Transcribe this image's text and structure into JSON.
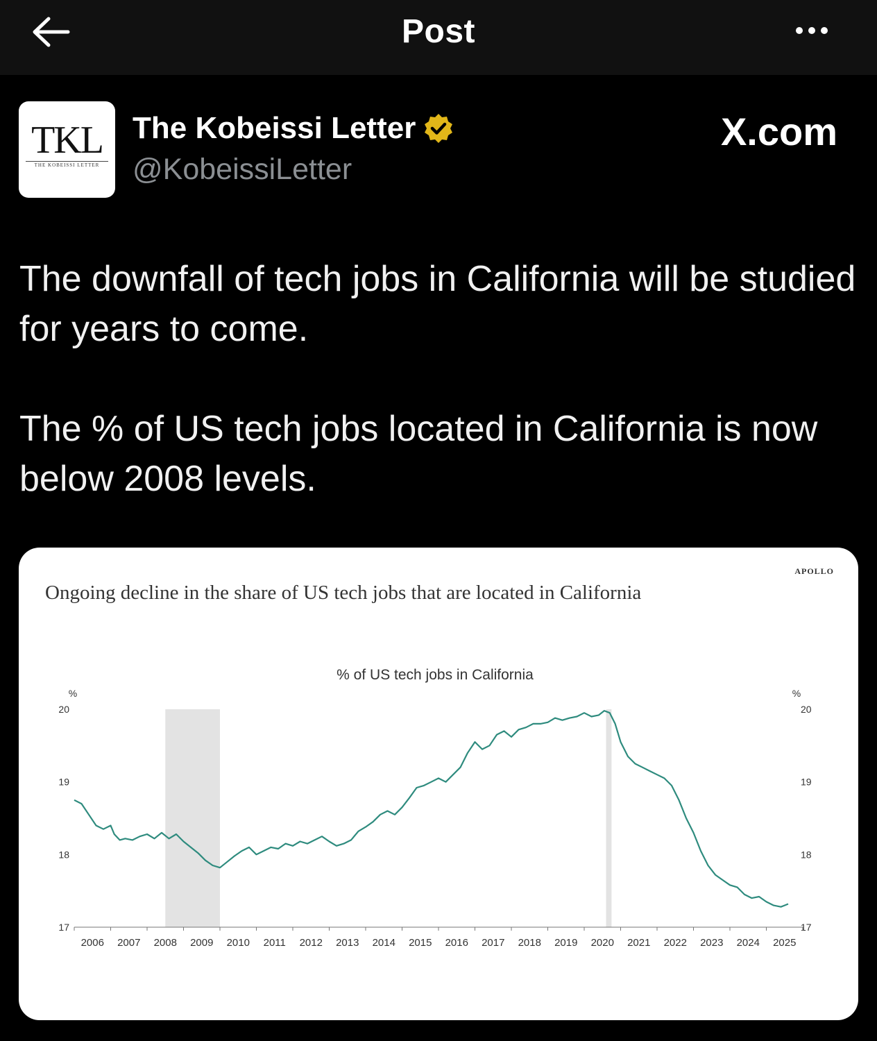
{
  "header": {
    "title": "Post",
    "back_icon": "arrow-left-icon",
    "more_icon": "more-horizontal-icon"
  },
  "author": {
    "name": "The Kobeissi Letter",
    "handle": "@KobeissiLetter",
    "verified_icon": "verified-badge-icon",
    "verified_color": "#e2b719",
    "avatar_text": "TKL",
    "avatar_subtext": "THE KOBEISSI LETTER"
  },
  "site_badge": "X.com",
  "post": {
    "paragraphs": [
      "The downfall of tech jobs in California will be studied for years to come.",
      "The % of US tech jobs located in California is now below 2008 levels."
    ]
  },
  "chart_data": {
    "type": "line",
    "brand": "APOLLO",
    "title": "Ongoing decline in the share of US tech jobs that are located in California",
    "subtitle": "% of US tech jobs in California",
    "ylabel_left": "%",
    "ylabel_right": "%",
    "ylim": [
      17,
      20
    ],
    "yticks": [
      17,
      18,
      19,
      20
    ],
    "xlim": [
      2005.5,
      2025.5
    ],
    "xtick_labels": [
      "2006",
      "2007",
      "2008",
      "2009",
      "2010",
      "2011",
      "2012",
      "2013",
      "2014",
      "2015",
      "2016",
      "2017",
      "2018",
      "2019",
      "2020",
      "2021",
      "2022",
      "2023",
      "2024",
      "2025"
    ],
    "recessions": [
      [
        2008.0,
        2009.5
      ],
      [
        2020.1,
        2020.25
      ]
    ],
    "line_color": "#2e8b7e",
    "shade_color": "#e3e3e3",
    "series": [
      {
        "x": [
          2005.5,
          2005.7,
          2005.9,
          2006.1,
          2006.3,
          2006.5,
          2006.6,
          2006.75,
          2006.9,
          2007.1,
          2007.3,
          2007.5,
          2007.7,
          2007.9,
          2008.1,
          2008.3,
          2008.5,
          2008.7,
          2008.9,
          2009.1,
          2009.3,
          2009.5,
          2009.7,
          2009.9,
          2010.1,
          2010.3,
          2010.5,
          2010.7,
          2010.9,
          2011.1,
          2011.3,
          2011.5,
          2011.7,
          2011.9,
          2012.1,
          2012.3,
          2012.5,
          2012.7,
          2012.9,
          2013.1,
          2013.3,
          2013.5,
          2013.7,
          2013.9,
          2014.1,
          2014.3,
          2014.5,
          2014.7,
          2014.9,
          2015.1,
          2015.3,
          2015.5,
          2015.7,
          2015.9,
          2016.1,
          2016.3,
          2016.5,
          2016.7,
          2016.9,
          2017.1,
          2017.3,
          2017.5,
          2017.7,
          2017.9,
          2018.1,
          2018.3,
          2018.5,
          2018.7,
          2018.9,
          2019.1,
          2019.3,
          2019.5,
          2019.7,
          2019.9,
          2020.05,
          2020.2,
          2020.35,
          2020.5,
          2020.7,
          2020.9,
          2021.1,
          2021.3,
          2021.5,
          2021.7,
          2021.9,
          2022.1,
          2022.3,
          2022.5,
          2022.7,
          2022.9,
          2023.1,
          2023.3,
          2023.5,
          2023.7,
          2023.9,
          2024.1,
          2024.3,
          2024.5,
          2024.7,
          2024.9,
          2025.0,
          2025.1
        ],
        "y": [
          18.75,
          18.7,
          18.55,
          18.4,
          18.35,
          18.4,
          18.28,
          18.2,
          18.22,
          18.2,
          18.25,
          18.28,
          18.22,
          18.3,
          18.22,
          18.28,
          18.18,
          18.1,
          18.02,
          17.92,
          17.85,
          17.82,
          17.9,
          17.98,
          18.05,
          18.1,
          18.0,
          18.05,
          18.1,
          18.08,
          18.15,
          18.12,
          18.18,
          18.15,
          18.2,
          18.25,
          18.18,
          18.12,
          18.15,
          18.2,
          18.32,
          18.38,
          18.45,
          18.55,
          18.6,
          18.55,
          18.65,
          18.78,
          18.92,
          18.95,
          19.0,
          19.05,
          19.0,
          19.1,
          19.2,
          19.4,
          19.55,
          19.45,
          19.5,
          19.65,
          19.7,
          19.62,
          19.72,
          19.75,
          19.8,
          19.8,
          19.82,
          19.88,
          19.85,
          19.88,
          19.9,
          19.95,
          19.9,
          19.92,
          19.98,
          19.95,
          19.8,
          19.55,
          19.35,
          19.25,
          19.2,
          19.15,
          19.1,
          19.05,
          18.95,
          18.75,
          18.5,
          18.3,
          18.05,
          17.85,
          17.72,
          17.65,
          17.58,
          17.55,
          17.45,
          17.4,
          17.42,
          17.35,
          17.3,
          17.28,
          17.3,
          17.32
        ]
      }
    ]
  }
}
